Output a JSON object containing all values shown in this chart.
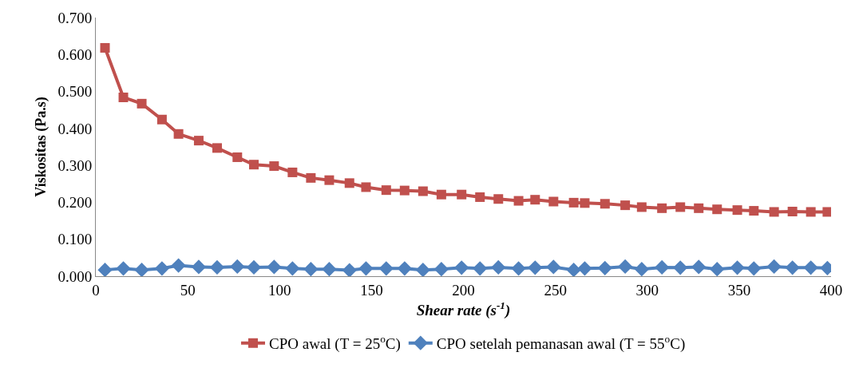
{
  "chart_data": {
    "type": "line",
    "xlabel": "Shear rate (s$^{-1}$)",
    "ylabel": "Viskositas (Pa.s)",
    "x": [
      5,
      15,
      25,
      36,
      45,
      56,
      66,
      77,
      86,
      97,
      107,
      117,
      127,
      138,
      147,
      158,
      168,
      178,
      188,
      199,
      209,
      219,
      230,
      239,
      249,
      260,
      266,
      277,
      288,
      297,
      308,
      318,
      328,
      338,
      349,
      358,
      369,
      379,
      389,
      398
    ],
    "series": [
      {
        "name": "CPO awal (T = 25$^{o}$C)",
        "color": "#c0504d",
        "marker": "square",
        "values": [
          0.618,
          0.484,
          0.467,
          0.424,
          0.385,
          0.367,
          0.347,
          0.322,
          0.302,
          0.298,
          0.281,
          0.266,
          0.26,
          0.252,
          0.241,
          0.233,
          0.232,
          0.23,
          0.221,
          0.221,
          0.214,
          0.209,
          0.204,
          0.207,
          0.202,
          0.199,
          0.198,
          0.196,
          0.192,
          0.187,
          0.184,
          0.187,
          0.184,
          0.181,
          0.179,
          0.177,
          0.174,
          0.175,
          0.174,
          0.174
        ]
      },
      {
        "name": "CPO setelah pemanasan awal (T = 55$^{o}$C)",
        "color": "#4f81bd",
        "marker": "diamond",
        "values": [
          0.017,
          0.021,
          0.017,
          0.021,
          0.029,
          0.025,
          0.024,
          0.026,
          0.024,
          0.025,
          0.021,
          0.019,
          0.019,
          0.016,
          0.021,
          0.021,
          0.021,
          0.017,
          0.019,
          0.023,
          0.021,
          0.024,
          0.021,
          0.023,
          0.025,
          0.017,
          0.021,
          0.022,
          0.026,
          0.019,
          0.024,
          0.023,
          0.025,
          0.019,
          0.023,
          0.021,
          0.026,
          0.023,
          0.023,
          0.022
        ]
      }
    ],
    "xlim": [
      0,
      400
    ],
    "xticks": [
      0,
      50,
      100,
      150,
      200,
      250,
      300,
      350,
      400
    ],
    "ylim": [
      0,
      0.7
    ],
    "yticks": [
      {
        "value": 0,
        "label": "0.000"
      },
      {
        "value": 0.1,
        "label": "0.100"
      },
      {
        "value": 0.2,
        "label": "0.200"
      },
      {
        "value": 0.3,
        "label": "0.300"
      },
      {
        "value": 0.4,
        "label": "0.400"
      },
      {
        "value": 0.5,
        "label": "0.500"
      },
      {
        "value": 0.6,
        "label": "0.600"
      },
      {
        "value": 0.7,
        "label": "0.700"
      }
    ],
    "legend": "bottom",
    "line_style": "solid"
  }
}
